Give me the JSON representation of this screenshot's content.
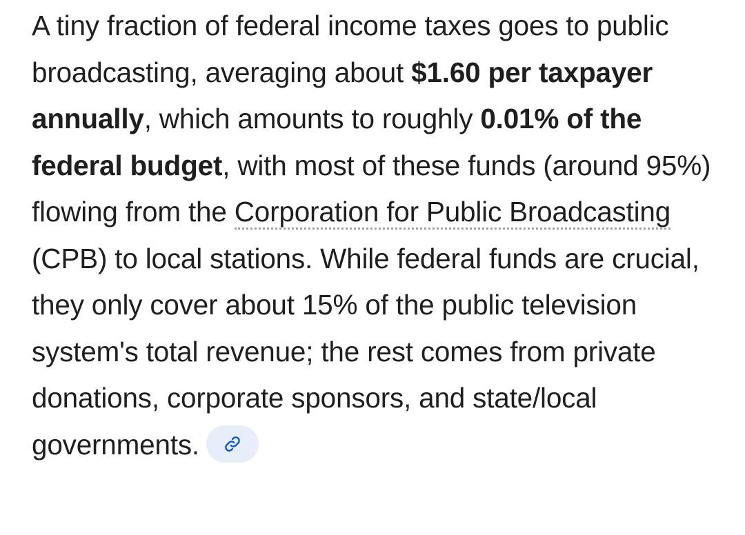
{
  "answer": {
    "seg1": "A tiny fraction of federal income taxes goes to public broadcasting, averaging about ",
    "bold1": "$1.60 per taxpayer annually",
    "seg2": ", which amounts to roughly ",
    "bold2": "0.01% of the federal budget",
    "seg3": ", with most of these funds (around 95%) flowing from the ",
    "link_text": "Corporation for Public Broadcasting",
    "seg4": " (CPB) to local stations. While federal funds are crucial, they only cover about 15% of the public television system's total revenue; the rest comes from private donations, corporate sponsors, and state/local governments.",
    "source_icon": "link-icon"
  },
  "colors": {
    "text": "#1f1f1f",
    "chip_background": "#e8eef9",
    "chip_icon": "#0b57d0",
    "link_underline": "#9aa0a6"
  }
}
